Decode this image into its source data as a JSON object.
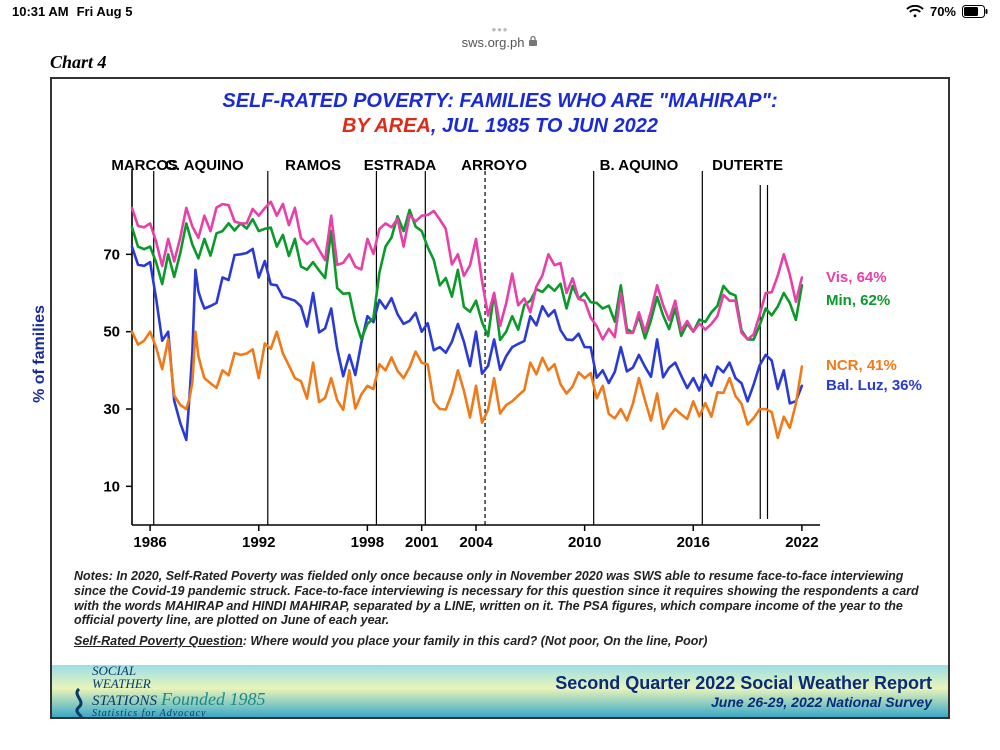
{
  "status": {
    "time": "10:31 AM",
    "date": "Fri Aug 5",
    "battery_pct": "70%",
    "url": "sws.org.ph"
  },
  "chart_label": "Chart 4",
  "title": {
    "line1": "SELF-RATED POVERTY: FAMILIES WHO ARE \"MAHIRAP\":",
    "by_area": "BY AREA",
    "line2_rest": ", JUL 1985 TO JUN 2022",
    "color_main": "#1a2bd6",
    "color_accent": "#e02a18"
  },
  "axes": {
    "ylabel": "% of families",
    "ylabel_color": "#1a2b9a",
    "ylim": [
      0,
      90
    ],
    "yticks": [
      10,
      30,
      50,
      70
    ],
    "xlim": [
      1985,
      2023
    ],
    "xticks": [
      1986,
      1992,
      1998,
      2001,
      2004,
      2010,
      2016,
      2022
    ],
    "tick_fontsize": 15,
    "tick_color": "#000",
    "background": "#ffffff",
    "axis_color": "#000000"
  },
  "presidents": [
    {
      "label": "MARCOS",
      "x": 1985.7,
      "line": 1985
    },
    {
      "label": "C. AQUINO",
      "x": 1989,
      "line": 1986.2
    },
    {
      "label": "RAMOS",
      "x": 1995,
      "line": 1992.5
    },
    {
      "label": "ESTRADA",
      "x": 1999.8,
      "line": 1998.5
    },
    {
      "label": "ARROYO",
      "x": 2005,
      "line": 2001.2,
      "dashed_line": 2004.5
    },
    {
      "label": "B. AQUINO",
      "x": 2013,
      "line": 2010.5
    },
    {
      "label": "DUTERTE",
      "x": 2019,
      "line": 2016.5
    }
  ],
  "series_style": {
    "line_width": 2.6
  },
  "series": {
    "vis": {
      "label": "Vis, 64%",
      "color": "#e83fa8",
      "label_y": 64,
      "points": [
        [
          1985,
          82
        ],
        [
          1986,
          78
        ],
        [
          1987,
          74
        ],
        [
          1988,
          82
        ],
        [
          1989,
          80
        ],
        [
          1990,
          83
        ],
        [
          1991,
          78
        ],
        [
          1992,
          80
        ],
        [
          1993,
          80
        ],
        [
          1994,
          82
        ],
        [
          1995,
          74
        ],
        [
          1996,
          80
        ],
        [
          1997,
          70
        ],
        [
          1998,
          74
        ],
        [
          1999,
          78
        ],
        [
          2000,
          72
        ],
        [
          2001,
          80
        ],
        [
          2002,
          79
        ],
        [
          2003,
          70
        ],
        [
          2004,
          74
        ],
        [
          2005,
          60
        ],
        [
          2006,
          65
        ],
        [
          2007,
          55
        ],
        [
          2008,
          70
        ],
        [
          2009,
          60
        ],
        [
          2010,
          58
        ],
        [
          2011,
          48
        ],
        [
          2012,
          60
        ],
        [
          2013,
          55
        ],
        [
          2014,
          62
        ],
        [
          2015,
          58
        ],
        [
          2016,
          50
        ],
        [
          2017,
          52
        ],
        [
          2018,
          58
        ],
        [
          2019,
          48
        ],
        [
          2020,
          60
        ],
        [
          2021,
          70
        ],
        [
          2022,
          64
        ]
      ]
    },
    "min": {
      "label": "Min, 62%",
      "color": "#0a9a2a",
      "label_y": 58,
      "points": [
        [
          1985,
          77
        ],
        [
          1986,
          72
        ],
        [
          1987,
          70
        ],
        [
          1988,
          78
        ],
        [
          1989,
          74
        ],
        [
          1990,
          76
        ],
        [
          1991,
          78
        ],
        [
          1992,
          76
        ],
        [
          1993,
          72
        ],
        [
          1994,
          74
        ],
        [
          1995,
          68
        ],
        [
          1996,
          76
        ],
        [
          1997,
          60
        ],
        [
          1998,
          52
        ],
        [
          1999,
          72
        ],
        [
          2000,
          76
        ],
        [
          2001,
          76
        ],
        [
          2002,
          62
        ],
        [
          2003,
          66
        ],
        [
          2004,
          58
        ],
        [
          2005,
          60
        ],
        [
          2006,
          54
        ],
        [
          2007,
          58
        ],
        [
          2008,
          62
        ],
        [
          2009,
          56
        ],
        [
          2010,
          60
        ],
        [
          2011,
          56
        ],
        [
          2012,
          62
        ],
        [
          2013,
          54
        ],
        [
          2014,
          59
        ],
        [
          2015,
          56
        ],
        [
          2016,
          50
        ],
        [
          2017,
          55
        ],
        [
          2018,
          60
        ],
        [
          2019,
          48
        ],
        [
          2020,
          56
        ],
        [
          2021,
          60
        ],
        [
          2022,
          62
        ]
      ]
    },
    "ncr": {
      "label": "NCR, 41%",
      "color": "#f07a1a",
      "label_y": 41,
      "points": [
        [
          1985,
          50
        ],
        [
          1986,
          50
        ],
        [
          1987,
          48
        ],
        [
          1988,
          30
        ],
        [
          1988.5,
          50
        ],
        [
          1989,
          38
        ],
        [
          1990,
          40
        ],
        [
          1991,
          44
        ],
        [
          1992,
          38
        ],
        [
          1993,
          50
        ],
        [
          1994,
          38
        ],
        [
          1995,
          42
        ],
        [
          1996,
          38
        ],
        [
          1997,
          40
        ],
        [
          1998,
          36
        ],
        [
          1999,
          40
        ],
        [
          2000,
          38
        ],
        [
          2001,
          42
        ],
        [
          2002,
          30
        ],
        [
          2003,
          40
        ],
        [
          2004,
          36
        ],
        [
          2005,
          38
        ],
        [
          2006,
          32
        ],
        [
          2007,
          42
        ],
        [
          2008,
          40
        ],
        [
          2009,
          34
        ],
        [
          2010,
          38
        ],
        [
          2011,
          36
        ],
        [
          2012,
          30
        ],
        [
          2013,
          38
        ],
        [
          2014,
          34
        ],
        [
          2015,
          30
        ],
        [
          2016,
          32
        ],
        [
          2017,
          28
        ],
        [
          2018,
          38
        ],
        [
          2019,
          26
        ],
        [
          2020,
          30
        ],
        [
          2021,
          28
        ],
        [
          2022,
          41
        ]
      ]
    },
    "bal": {
      "label": "Bal. Luz, 36%",
      "color": "#2a3ad6",
      "label_y": 36,
      "points": [
        [
          1985,
          72
        ],
        [
          1986,
          68
        ],
        [
          1987,
          50
        ],
        [
          1988,
          22
        ],
        [
          1988.5,
          66
        ],
        [
          1989,
          56
        ],
        [
          1990,
          64
        ],
        [
          1991,
          70
        ],
        [
          1992,
          64
        ],
        [
          1993,
          62
        ],
        [
          1994,
          58
        ],
        [
          1995,
          60
        ],
        [
          1996,
          56
        ],
        [
          1997,
          44
        ],
        [
          1998,
          54
        ],
        [
          1999,
          56
        ],
        [
          2000,
          52
        ],
        [
          2001,
          50
        ],
        [
          2002,
          46
        ],
        [
          2003,
          52
        ],
        [
          2004,
          50
        ],
        [
          2005,
          48
        ],
        [
          2006,
          46
        ],
        [
          2007,
          54
        ],
        [
          2008,
          54
        ],
        [
          2009,
          48
        ],
        [
          2010,
          46
        ],
        [
          2011,
          40
        ],
        [
          2012,
          46
        ],
        [
          2013,
          44
        ],
        [
          2014,
          48
        ],
        [
          2015,
          42
        ],
        [
          2016,
          38
        ],
        [
          2017,
          36
        ],
        [
          2018,
          42
        ],
        [
          2019,
          32
        ],
        [
          2020,
          44
        ],
        [
          2021,
          40
        ],
        [
          2022,
          36
        ]
      ]
    }
  },
  "notes": {
    "p1": "Notes: In 2020, Self-Rated Poverty was fielded only once because only in November 2020 was SWS able to resume face-to-face interviewing since the Covid-19 pandemic struck. Face-to-face interviewing is necessary for this question since it requires showing the respondents a card with the words MAHIRAP and HINDI MAHIRAP, separated by a LINE, written on it. The PSA figures, which compare income of the year to the official poverty line, are plotted on June of each year.",
    "q_label": "Self-Rated Poverty Question",
    "q_text": ":  Where would you place your family in this card?  (Not poor, On the line, Poor)"
  },
  "footer": {
    "brand_line1": "SOCIAL",
    "brand_line2": "WEATHER",
    "brand_line3": "STATIONS",
    "founded": "Founded 1985",
    "tagline": "Statistics for Advocacy",
    "right1": "Second Quarter 2022 Social Weather Report",
    "right2": "June 26-29, 2022 National Survey",
    "gradient_top": "#9adfe8",
    "gradient_mid": "#e8f4b8",
    "gradient_bot": "#3aa8c8"
  }
}
